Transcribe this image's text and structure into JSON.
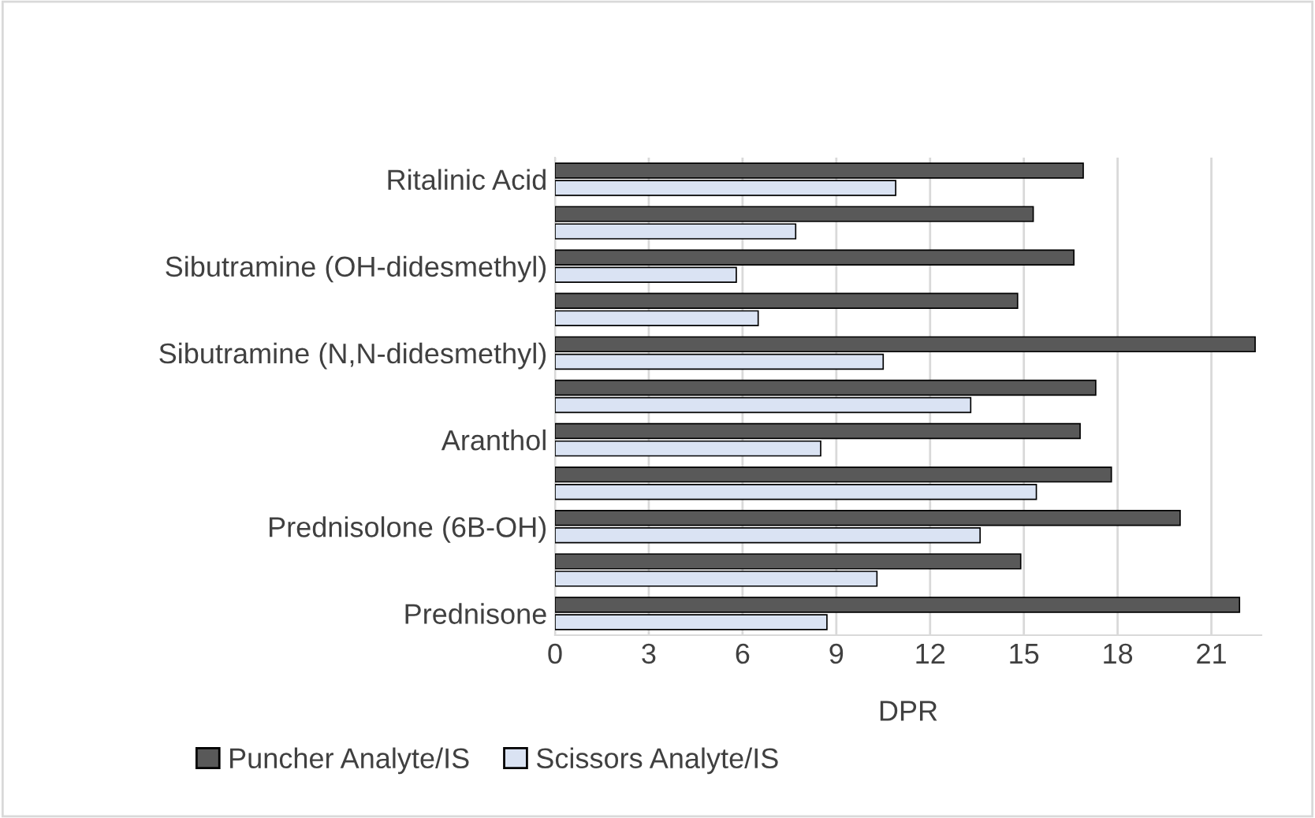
{
  "chart_data": {
    "type": "bar",
    "orientation": "horizontal",
    "xlabel": "DPR",
    "categories": [
      "Ritalinic Acid",
      null,
      "Sibutramine (OH-didesmethyl)",
      null,
      "Sibutramine (N,N-didesmethyl)",
      null,
      "Aranthol",
      null,
      "Prednisolone (6B-OH)",
      null,
      "Prednisone"
    ],
    "series": [
      {
        "name": "Puncher Analyte/IS",
        "color": "#595959",
        "values": [
          16.9,
          15.3,
          16.6,
          14.8,
          22.4,
          17.3,
          16.8,
          17.8,
          20.0,
          14.9,
          21.9
        ]
      },
      {
        "name": "Scissors Analyte/IS",
        "color": "#dae3f3",
        "values": [
          10.9,
          7.7,
          5.8,
          6.5,
          10.5,
          13.3,
          8.5,
          15.4,
          13.6,
          10.3,
          8.7
        ]
      }
    ],
    "xlim": [
      0,
      22.6
    ],
    "xticks": [
      0,
      3,
      6,
      9,
      12,
      15,
      18,
      21
    ],
    "grid": "x",
    "legend": "bottom"
  }
}
